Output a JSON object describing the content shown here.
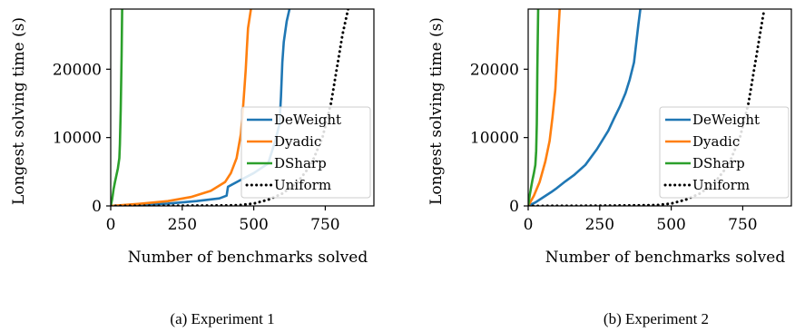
{
  "chart_data": [
    {
      "type": "line",
      "caption": "(a) Experiment 1",
      "xlabel": "Number of benchmarks solved",
      "ylabel": "Longest solving time (s)",
      "xlim": [
        0,
        920
      ],
      "ylim": [
        0,
        28800
      ],
      "xticks": [
        0,
        250,
        500,
        750
      ],
      "yticks": [
        0,
        10000,
        20000
      ],
      "grid": false,
      "legend": "center-right",
      "series": [
        {
          "name": "DeWeight",
          "color": "#1f77b4",
          "style": "solid",
          "x": [
            0,
            100,
            200,
            300,
            380,
            405,
            410,
            450,
            500,
            550,
            575,
            590,
            595,
            600,
            605,
            615,
            625
          ],
          "y": [
            0,
            150,
            350,
            700,
            1100,
            1500,
            2800,
            3700,
            4800,
            6200,
            9500,
            12000,
            16000,
            21000,
            24000,
            27000,
            28800
          ]
        },
        {
          "name": "Dyadic",
          "color": "#ff7f0e",
          "style": "solid",
          "x": [
            0,
            100,
            200,
            280,
            350,
            400,
            420,
            440,
            455,
            462,
            468,
            472,
            476,
            480,
            490
          ],
          "y": [
            0,
            300,
            700,
            1300,
            2200,
            3500,
            4800,
            7000,
            10500,
            14000,
            17500,
            20000,
            23000,
            26000,
            28800
          ]
        },
        {
          "name": "DSharp",
          "color": "#2ca02c",
          "style": "solid",
          "x": [
            0,
            5,
            10,
            15,
            20,
            25,
            30,
            32,
            35,
            38,
            40
          ],
          "y": [
            0,
            1000,
            2500,
            3500,
            4500,
            5500,
            7000,
            9000,
            14000,
            22000,
            28800
          ]
        },
        {
          "name": "Uniform",
          "color": "#000000",
          "style": "dotted",
          "x": [
            0,
            200,
            400,
            450,
            500,
            550,
            600,
            650,
            700,
            740,
            770,
            790,
            810,
            830
          ],
          "y": [
            0,
            20,
            60,
            120,
            350,
            900,
            1800,
            3300,
            6000,
            10000,
            15000,
            20000,
            25000,
            28800
          ]
        }
      ]
    },
    {
      "type": "line",
      "caption": "(b) Experiment 2",
      "xlabel": "Number of benchmarks solved",
      "ylabel": "Longest solving time (s)",
      "xlim": [
        0,
        920
      ],
      "ylim": [
        0,
        28800
      ],
      "xticks": [
        0,
        250,
        500,
        750
      ],
      "yticks": [
        0,
        10000,
        20000
      ],
      "grid": false,
      "legend": "center-right",
      "series": [
        {
          "name": "DeWeight",
          "color": "#1f77b4",
          "style": "solid",
          "x": [
            0,
            25,
            50,
            80,
            100,
            130,
            160,
            200,
            240,
            280,
            300,
            320,
            340,
            355,
            370,
            378,
            385,
            392
          ],
          "y": [
            0,
            500,
            1200,
            2000,
            2600,
            3600,
            4500,
            6000,
            8300,
            11000,
            12800,
            14500,
            16500,
            18500,
            21000,
            24000,
            26500,
            28800
          ]
        },
        {
          "name": "Dyadic",
          "color": "#ff7f0e",
          "style": "solid",
          "x": [
            0,
            20,
            40,
            60,
            75,
            85,
            95,
            100,
            105,
            110
          ],
          "y": [
            0,
            1500,
            3500,
            6500,
            9500,
            13000,
            17000,
            21000,
            25000,
            28800
          ]
        },
        {
          "name": "DSharp",
          "color": "#2ca02c",
          "style": "solid",
          "x": [
            0,
            5,
            10,
            15,
            20,
            25,
            28,
            30,
            32,
            35
          ],
          "y": [
            0,
            1500,
            2700,
            3800,
            4800,
            6000,
            8000,
            12000,
            20000,
            28800
          ]
        },
        {
          "name": "Uniform",
          "color": "#000000",
          "style": "dotted",
          "x": [
            0,
            200,
            350,
            450,
            500,
            550,
            600,
            650,
            700,
            740,
            770,
            790,
            810,
            825
          ],
          "y": [
            0,
            20,
            60,
            120,
            350,
            900,
            1800,
            3300,
            6000,
            10000,
            15000,
            20000,
            25000,
            28800
          ]
        }
      ]
    }
  ]
}
